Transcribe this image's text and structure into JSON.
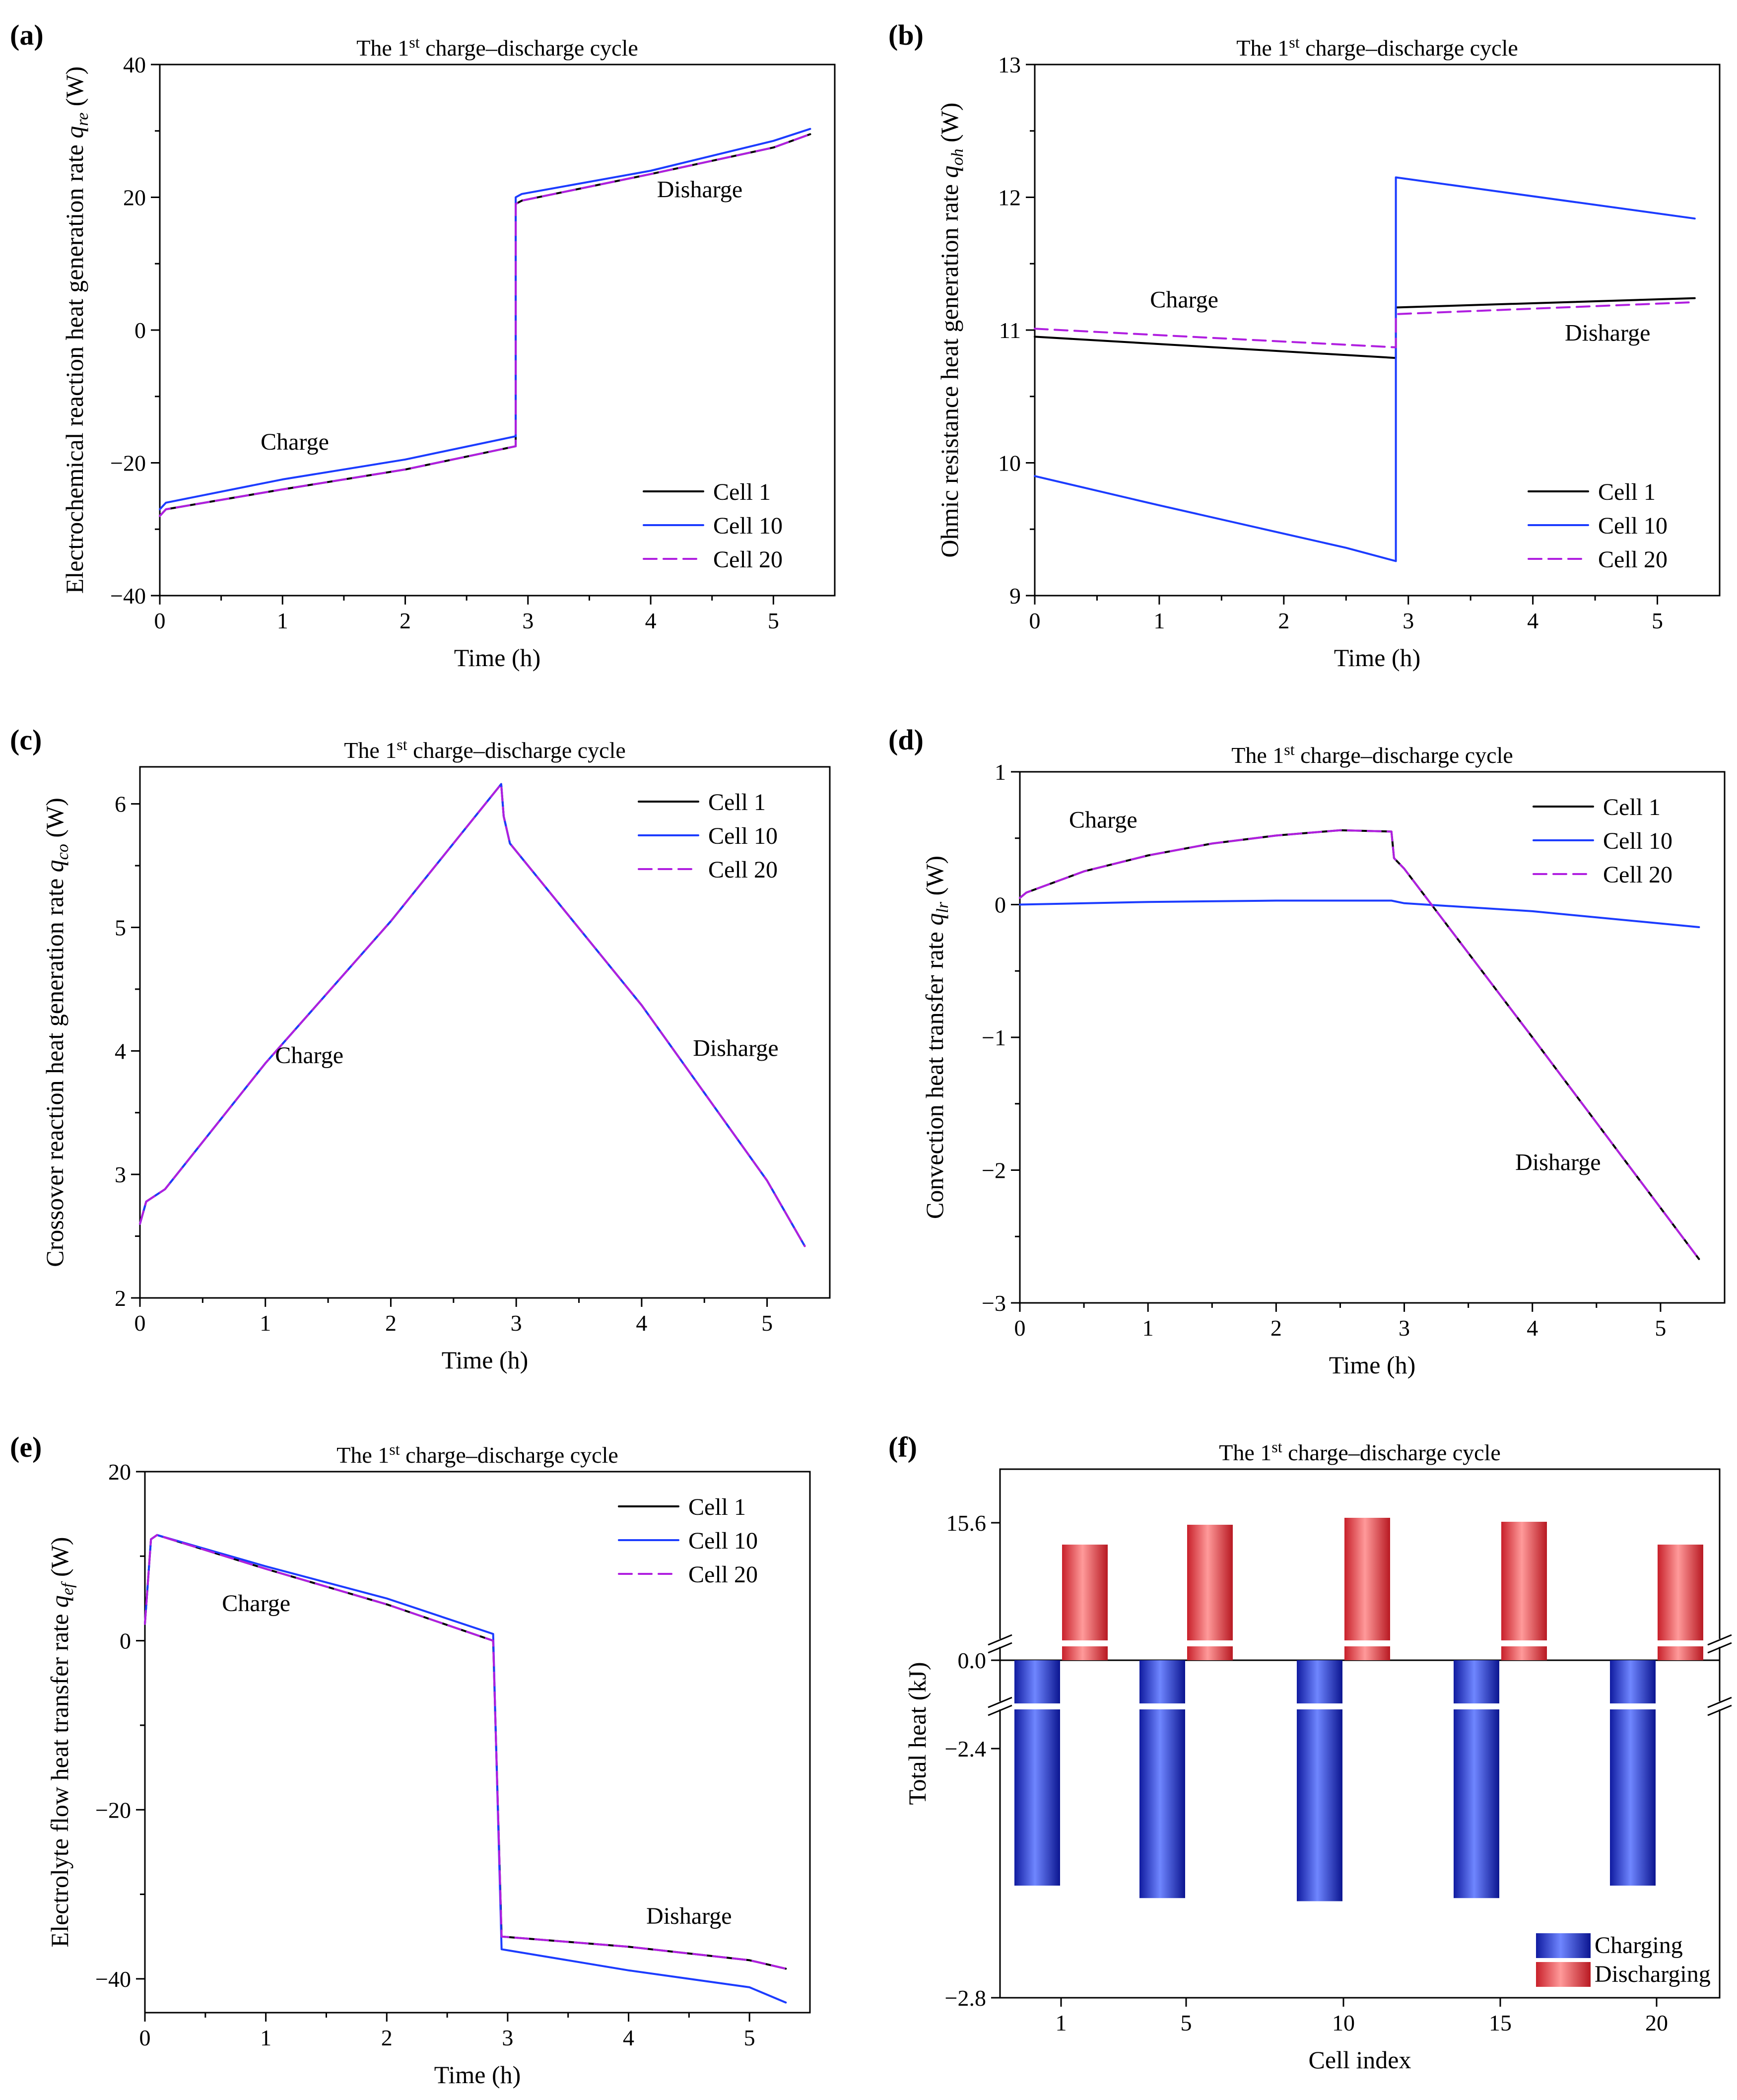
{
  "figure": {
    "title_prefix": "The 1",
    "title_sup": "st",
    "title_suffix": " charge–discharge cycle"
  },
  "chart_data": [
    {
      "id": "a",
      "panel_label": "(a)",
      "type": "line",
      "title": "The 1st charge–discharge cycle",
      "xlabel": "Time (h)",
      "ylabel_text": "Electrochemical reaction heat generation rate ",
      "ylabel_sym": "q",
      "ylabel_sub": "re",
      "ylabel_unit": " (W)",
      "xlim": [
        0,
        5.5
      ],
      "ylim": [
        -40,
        40
      ],
      "xticks": [
        0,
        1,
        2,
        3,
        4,
        5
      ],
      "yticks": [
        -40,
        -20,
        0,
        20,
        40
      ],
      "ytick_labels": [
        "−40",
        "−20",
        "0",
        "20",
        "40"
      ],
      "legend": [
        "Cell 1",
        "Cell 10",
        "Cell 20"
      ],
      "annotations": [
        {
          "text": "Charge",
          "x": 1.1,
          "y": -18
        },
        {
          "text": "Disharge",
          "x": 4.4,
          "y": 20
        }
      ],
      "series": [
        {
          "name": "Cell 1",
          "x": [
            0,
            0.05,
            1,
            2,
            2.9,
            2.9,
            2.95,
            4,
            5,
            5.3
          ],
          "y": [
            -28,
            -27,
            -24,
            -21,
            -17.5,
            19,
            19.5,
            23.5,
            27.5,
            29.5
          ]
        },
        {
          "name": "Cell 10",
          "x": [
            0,
            0.05,
            1,
            2,
            2.9,
            2.9,
            2.95,
            4,
            5,
            5.3
          ],
          "y": [
            -27,
            -26,
            -22.5,
            -19.5,
            -16,
            20,
            20.5,
            24,
            28.5,
            30.3
          ]
        },
        {
          "name": "Cell 20",
          "x": [
            0,
            0.05,
            1,
            2,
            2.9,
            2.9,
            2.95,
            4,
            5,
            5.3
          ],
          "y": [
            -28,
            -27,
            -24,
            -21,
            -17.5,
            19,
            19.5,
            23.5,
            27.5,
            29.5
          ]
        }
      ]
    },
    {
      "id": "b",
      "panel_label": "(b)",
      "type": "line",
      "title": "The 1st charge–discharge cycle",
      "xlabel": "Time (h)",
      "ylabel_text": "Ohmic resistance heat generation rate ",
      "ylabel_sym": "q",
      "ylabel_sub": "oh",
      "ylabel_unit": " (W)",
      "xlim": [
        0,
        5.5
      ],
      "ylim": [
        9,
        13
      ],
      "xticks": [
        0,
        1,
        2,
        3,
        4,
        5
      ],
      "yticks": [
        9,
        10,
        11,
        12,
        13
      ],
      "ytick_labels": [
        "9",
        "10",
        "11",
        "12",
        "13"
      ],
      "legend": [
        "Cell 1",
        "Cell 10",
        "Cell 20"
      ],
      "annotations": [
        {
          "text": "Charge",
          "x": 1.2,
          "y": 11.17
        },
        {
          "text": "Disharge",
          "x": 4.6,
          "y": 10.92
        }
      ],
      "series": [
        {
          "name": "Cell 1",
          "x": [
            0,
            2.9,
            2.9,
            5.3
          ],
          "y": [
            10.95,
            10.79,
            11.17,
            11.24
          ]
        },
        {
          "name": "Cell 10",
          "x": [
            0,
            1,
            2.5,
            2.9,
            2.9,
            5.3
          ],
          "y": [
            9.9,
            9.68,
            9.36,
            9.26,
            12.15,
            11.84
          ]
        },
        {
          "name": "Cell 20",
          "x": [
            0,
            2.9,
            2.9,
            5.3
          ],
          "y": [
            11.01,
            10.87,
            11.12,
            11.21
          ]
        }
      ]
    },
    {
      "id": "c",
      "panel_label": "(c)",
      "type": "line",
      "title": "The 1st charge–discharge cycle",
      "xlabel": "Time (h)",
      "ylabel_text": "Crossover reaction heat generation rate ",
      "ylabel_sym": "q",
      "ylabel_sub": "co",
      "ylabel_unit": " (W)",
      "xlim": [
        0,
        5.5
      ],
      "ylim": [
        2,
        6.3
      ],
      "xticks": [
        0,
        1,
        2,
        3,
        4,
        5
      ],
      "yticks": [
        2,
        3,
        4,
        5,
        6
      ],
      "ytick_labels": [
        "2",
        "3",
        "4",
        "5",
        "6"
      ],
      "legend": [
        "Cell 1",
        "Cell 10",
        "Cell 20"
      ],
      "annotations": [
        {
          "text": "Charge",
          "x": 1.35,
          "y": 3.9
        },
        {
          "text": "Disharge",
          "x": 4.75,
          "y": 3.96
        }
      ],
      "series": [
        {
          "name": "Cell 1",
          "x": [
            0,
            0.05,
            0.2,
            1,
            2,
            2.88,
            2.9,
            2.95,
            4,
            5,
            5.3
          ],
          "y": [
            2.6,
            2.78,
            2.88,
            3.9,
            5.05,
            6.16,
            5.9,
            5.68,
            4.37,
            2.95,
            2.42
          ]
        },
        {
          "name": "Cell 10",
          "x": [
            0,
            0.05,
            0.2,
            1,
            2,
            2.88,
            2.9,
            2.95,
            4,
            5,
            5.3
          ],
          "y": [
            2.6,
            2.78,
            2.88,
            3.9,
            5.05,
            6.16,
            5.9,
            5.68,
            4.37,
            2.95,
            2.42
          ]
        },
        {
          "name": "Cell 20",
          "x": [
            0,
            0.05,
            0.2,
            1,
            2,
            2.88,
            2.9,
            2.95,
            4,
            5,
            5.3
          ],
          "y": [
            2.6,
            2.78,
            2.88,
            3.9,
            5.05,
            6.16,
            5.9,
            5.68,
            4.37,
            2.95,
            2.42
          ]
        }
      ]
    },
    {
      "id": "d",
      "panel_label": "(d)",
      "type": "line",
      "title": "The 1st charge–discharge cycle",
      "xlabel": "Time (h)",
      "ylabel_text": "Convection heat transfer rate ",
      "ylabel_sym": "q",
      "ylabel_sub": "lr",
      "ylabel_unit": " (W)",
      "xlim": [
        0,
        5.5
      ],
      "ylim": [
        -3,
        1
      ],
      "xticks": [
        0,
        1,
        2,
        3,
        4,
        5
      ],
      "yticks": [
        -3,
        -2,
        -1,
        0,
        1
      ],
      "ytick_labels": [
        "−3",
        "−2",
        "−1",
        "0",
        "1"
      ],
      "legend": [
        "Cell 1",
        "Cell 10",
        "Cell 20"
      ],
      "annotations": [
        {
          "text": "Charge",
          "x": 0.65,
          "y": 0.58
        },
        {
          "text": "Disharge",
          "x": 4.2,
          "y": -2.0
        }
      ],
      "series": [
        {
          "name": "Cell 1",
          "x": [
            0,
            0.05,
            0.5,
            1,
            1.5,
            2,
            2.5,
            2.9,
            2.92,
            3.0,
            4,
            5.3
          ],
          "y": [
            0.05,
            0.09,
            0.25,
            0.37,
            0.46,
            0.52,
            0.56,
            0.55,
            0.35,
            0.27,
            -1.0,
            -2.67
          ]
        },
        {
          "name": "Cell 10",
          "x": [
            0,
            1,
            2,
            2.9,
            3.0,
            4,
            5.3
          ],
          "y": [
            0.0,
            0.02,
            0.03,
            0.03,
            0.01,
            -0.05,
            -0.17
          ]
        },
        {
          "name": "Cell 20",
          "x": [
            0,
            0.05,
            0.5,
            1,
            1.5,
            2,
            2.5,
            2.9,
            2.92,
            3.0,
            4,
            5.3
          ],
          "y": [
            0.05,
            0.09,
            0.25,
            0.37,
            0.46,
            0.52,
            0.56,
            0.55,
            0.35,
            0.27,
            -1.0,
            -2.67
          ]
        }
      ]
    },
    {
      "id": "e",
      "panel_label": "(e)",
      "type": "line",
      "title": "The 1st charge–discharge cycle",
      "xlabel": "Time (h)",
      "ylabel_text": "Electrolyte flow heat transfer rate ",
      "ylabel_sym": "q",
      "ylabel_sub": "ef",
      "ylabel_unit": " (W)",
      "xlim": [
        0,
        5.5
      ],
      "ylim": [
        -44,
        20
      ],
      "xticks": [
        0,
        1,
        2,
        3,
        4,
        5
      ],
      "yticks": [
        -40,
        -20,
        0,
        20
      ],
      "ytick_labels": [
        "−40",
        "−20",
        "0",
        "20"
      ],
      "legend": [
        "Cell 1",
        "Cell 10",
        "Cell 20"
      ],
      "annotations": [
        {
          "text": "Charge",
          "x": 0.92,
          "y": 3.5
        },
        {
          "text": "Disharge",
          "x": 4.5,
          "y": -33.5
        }
      ],
      "series": [
        {
          "name": "Cell 1",
          "x": [
            0,
            0.05,
            0.1,
            1,
            2,
            2.88,
            2.9,
            2.95,
            4,
            5,
            5.3
          ],
          "y": [
            2,
            12,
            12.5,
            8.5,
            4.3,
            0,
            -10,
            -35,
            -36.2,
            -37.8,
            -38.8
          ]
        },
        {
          "name": "Cell 10",
          "x": [
            0,
            0.05,
            0.1,
            1,
            2,
            2.88,
            2.9,
            2.95,
            4,
            5,
            5.3
          ],
          "y": [
            2,
            12,
            12.5,
            8.8,
            5.0,
            0.8,
            -10,
            -36.5,
            -39.0,
            -41.0,
            -42.8
          ]
        },
        {
          "name": "Cell 20",
          "x": [
            0,
            0.05,
            0.1,
            1,
            2,
            2.88,
            2.9,
            2.95,
            4,
            5,
            5.3
          ],
          "y": [
            2,
            12,
            12.5,
            8.5,
            4.3,
            0,
            -10,
            -35,
            -36.2,
            -37.8,
            -38.8
          ]
        }
      ]
    },
    {
      "id": "f",
      "panel_label": "(f)",
      "type": "bar",
      "title": "The 1st charge–discharge cycle",
      "xlabel": "Cell index",
      "ylabel": "Total heat (kJ)",
      "categories": [
        "1",
        "5",
        "10",
        "15",
        "20"
      ],
      "yticks": [
        -2.8,
        -2.4,
        0.0,
        15.6
      ],
      "ytick_labels": [
        "−2.8",
        "−2.4",
        "0.0",
        "15.6"
      ],
      "legend": [
        "Charging",
        "Discharging"
      ],
      "series": [
        {
          "name": "Charging",
          "values": [
            -2.62,
            -2.64,
            -2.645,
            -2.64,
            -2.62
          ]
        },
        {
          "name": "Discharging",
          "values": [
            15.38,
            15.58,
            15.65,
            15.61,
            15.38
          ]
        }
      ]
    }
  ]
}
